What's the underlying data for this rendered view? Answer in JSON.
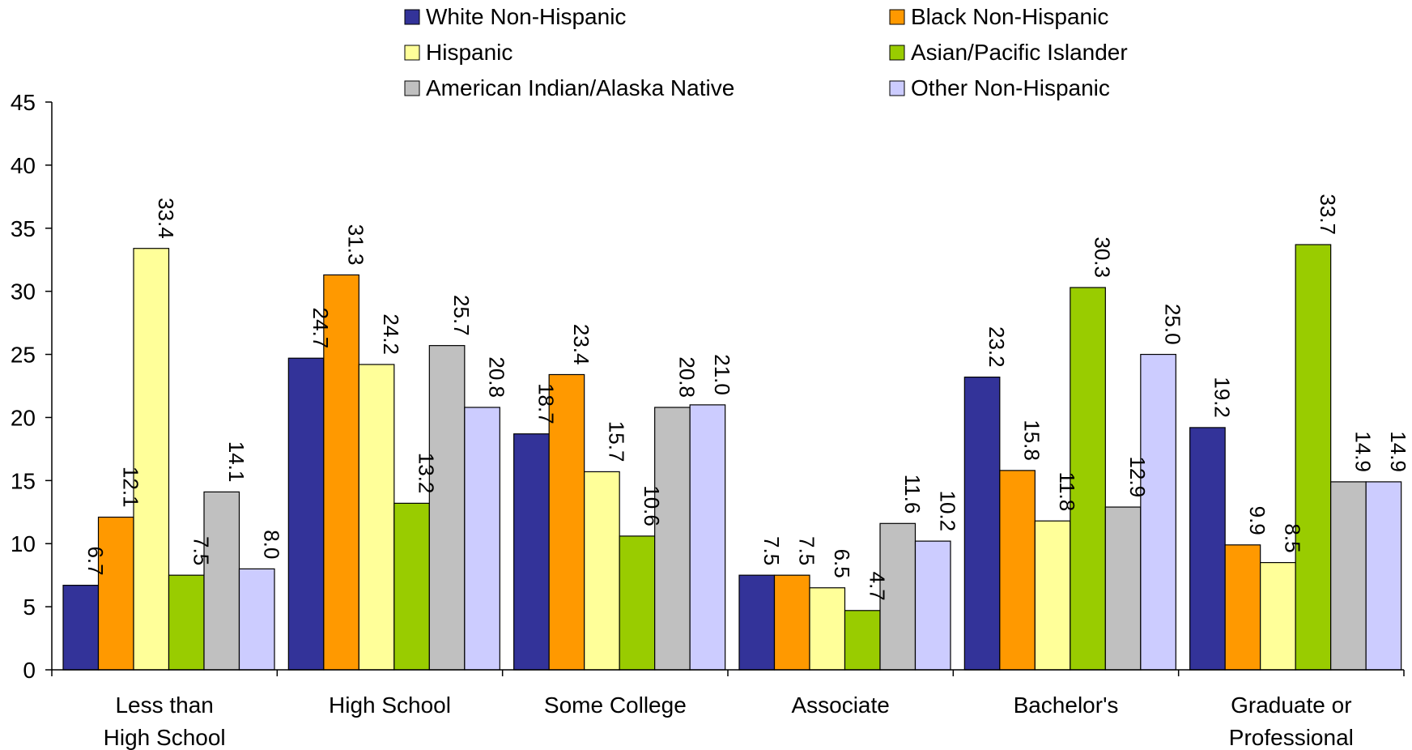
{
  "chart_data": {
    "type": "bar",
    "title": "",
    "xlabel": "",
    "ylabel": "",
    "ylim": [
      0,
      45
    ],
    "yticks": [
      "0",
      "5",
      "10",
      "15",
      "20",
      "25",
      "30",
      "35",
      "40",
      "45"
    ],
    "grid": false,
    "legend_position": "top",
    "categories": [
      [
        "Less than",
        "High School"
      ],
      [
        "High School"
      ],
      [
        "Some College"
      ],
      [
        "Associate"
      ],
      [
        "Bachelor's"
      ],
      [
        "Graduate or",
        "Professional"
      ]
    ],
    "series": [
      {
        "name": "White Non-Hispanic",
        "color": "#333399",
        "values": [
          6.7,
          24.7,
          18.7,
          7.5,
          23.2,
          19.2
        ],
        "labels": [
          "6.7",
          "24.7",
          "18.7",
          "7.5",
          "23.2",
          "19.2"
        ]
      },
      {
        "name": "Black Non-Hispanic",
        "color": "#FF9900",
        "values": [
          12.1,
          31.3,
          23.4,
          7.5,
          15.8,
          9.9
        ],
        "labels": [
          "12.1",
          "31.3",
          "23.4",
          "7.5",
          "15.8",
          "9.9"
        ]
      },
      {
        "name": "Hispanic",
        "color": "#FFFF99",
        "values": [
          33.4,
          24.2,
          15.7,
          6.5,
          11.8,
          8.5
        ],
        "labels": [
          "33.4",
          "24.2",
          "15.7",
          "6.5",
          "11.8",
          "8.5"
        ]
      },
      {
        "name": "Asian/Pacific Islander",
        "color": "#99CC00",
        "values": [
          7.5,
          13.2,
          10.6,
          4.7,
          30.3,
          33.7
        ],
        "labels": [
          "7.5",
          "13.2",
          "10.6",
          "4.7",
          "30.3",
          "33.7"
        ]
      },
      {
        "name": "American Indian/Alaska Native",
        "color": "#C0C0C0",
        "values": [
          14.1,
          25.7,
          20.8,
          11.6,
          12.9,
          14.9
        ],
        "labels": [
          "14.1",
          "25.7",
          "20.8",
          "11.6",
          "12.9",
          "14.9"
        ]
      },
      {
        "name": "Other Non-Hispanic",
        "color": "#CCCCFF",
        "values": [
          8.0,
          20.8,
          21.0,
          10.2,
          25.0,
          14.9
        ],
        "labels": [
          "8.0",
          "20.8",
          "21.0",
          "10.2",
          "25.0",
          "14.9"
        ]
      }
    ]
  }
}
